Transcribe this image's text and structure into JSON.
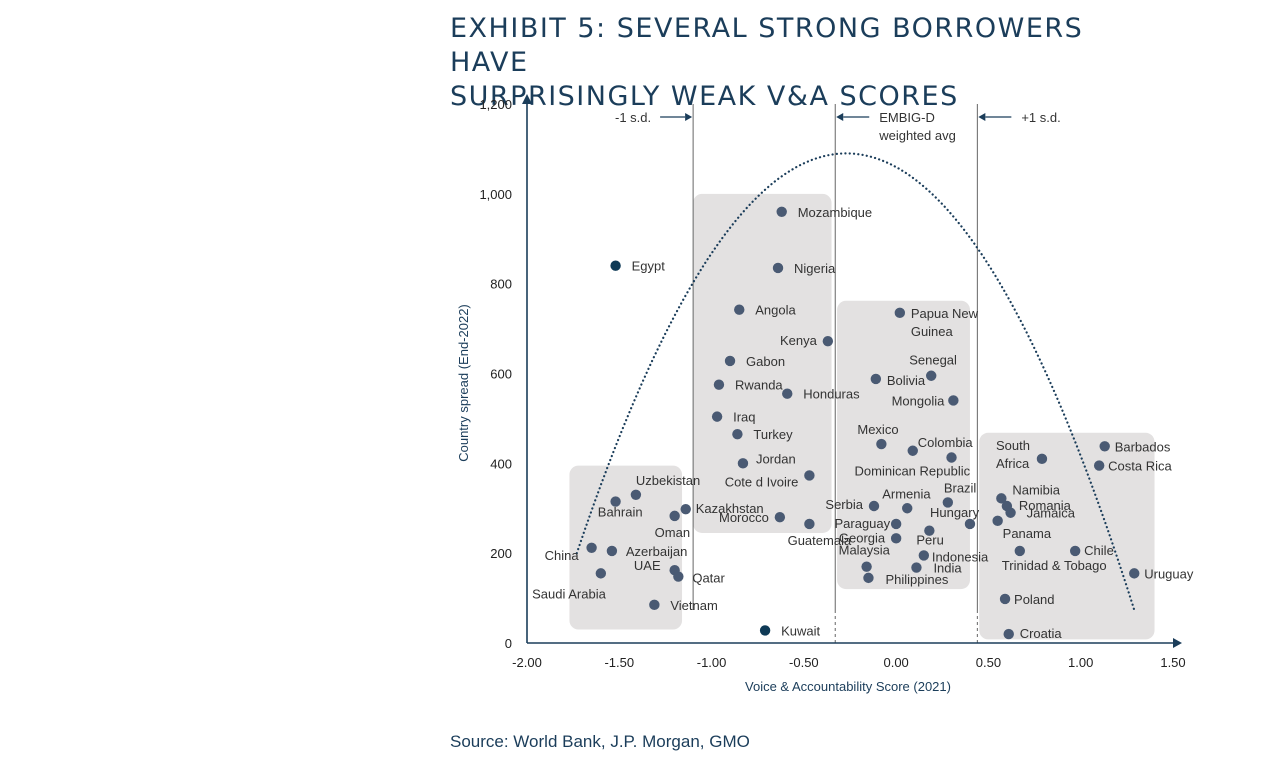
{
  "title": {
    "line1": "EXHIBIT 5: SEVERAL STRONG BORROWERS HAVE",
    "line2": "SURPRISINGLY WEAK V&A SCORES"
  },
  "source": "Source: World Bank, J.P. Morgan, GMO",
  "colors": {
    "title": "#1b3d5a",
    "axis": "#1b3d5a",
    "point": "#4a5a73",
    "highlight_point": "#0f3a56",
    "box": "#e3e1e1",
    "label": "#333333"
  },
  "chart_data": {
    "type": "scatter",
    "xlabel": "Voice & Accountability Score (2021)",
    "ylabel": "Country spread (End-2022)",
    "xlim": [
      -2.0,
      1.5
    ],
    "ylim": [
      0,
      1200
    ],
    "xticks": [
      "-2.00",
      "-1.50",
      "-1.00",
      "-0.50",
      "0.00",
      "0.50",
      "1.00",
      "1.50"
    ],
    "yticks": [
      "0",
      "200",
      "400",
      "600",
      "800",
      "1,000",
      "1,200"
    ],
    "reference_lines": [
      {
        "x": -1.1,
        "label": "-1 s.d.",
        "style": "solid"
      },
      {
        "x": -0.33,
        "label": "EMBIG-D weighted avg",
        "label_lines": [
          "EMBIG-D",
          "weighted avg"
        ],
        "style": "solid"
      },
      {
        "x": 0.44,
        "label": "+1 s.d.",
        "style": "solid"
      }
    ],
    "curve": {
      "style": "dotted",
      "note": "inverted parabola"
    },
    "boxes": [
      {
        "x0": -1.77,
        "x1": -1.16,
        "y0": 30,
        "y1": 395
      },
      {
        "x0": -1.1,
        "x1": -0.35,
        "y0": 245,
        "y1": 1000
      },
      {
        "x0": -0.32,
        "x1": 0.4,
        "y0": 120,
        "y1": 762
      },
      {
        "x0": 0.45,
        "x1": 1.4,
        "y0": 8,
        "y1": 468
      }
    ],
    "points": [
      {
        "name": "Mozambique",
        "x": -0.62,
        "y": 960
      },
      {
        "name": "Egypt",
        "x": -1.52,
        "y": 840,
        "highlight": true
      },
      {
        "name": "Nigeria",
        "x": -0.64,
        "y": 835
      },
      {
        "name": "Angola",
        "x": -0.85,
        "y": 742
      },
      {
        "name": "Kenya",
        "x": -0.37,
        "y": 672
      },
      {
        "name": "Gabon",
        "x": -0.9,
        "y": 628
      },
      {
        "name": "Rwanda",
        "x": -0.96,
        "y": 575
      },
      {
        "name": "Honduras",
        "x": -0.59,
        "y": 555
      },
      {
        "name": "Iraq",
        "x": -0.97,
        "y": 504
      },
      {
        "name": "Turkey",
        "x": -0.86,
        "y": 465
      },
      {
        "name": "Jordan",
        "x": -0.83,
        "y": 400
      },
      {
        "name": "Cote d Ivoire",
        "x": -0.47,
        "y": 373
      },
      {
        "name": "Uzbekistan",
        "x": -1.41,
        "y": 330
      },
      {
        "name": "Bahrain",
        "x": -1.52,
        "y": 315
      },
      {
        "name": "Kazakhstan",
        "x": -1.14,
        "y": 298
      },
      {
        "name": "Oman",
        "x": -1.2,
        "y": 283
      },
      {
        "name": "Morocco",
        "x": -0.63,
        "y": 280
      },
      {
        "name": "Guatemala",
        "x": -0.47,
        "y": 265
      },
      {
        "name": "China",
        "x": -1.65,
        "y": 212
      },
      {
        "name": "Azerbaijan",
        "x": -1.54,
        "y": 205
      },
      {
        "name": "UAE",
        "x": -1.2,
        "y": 162
      },
      {
        "name": "Qatar",
        "x": -1.18,
        "y": 148
      },
      {
        "name": "Saudi Arabia",
        "x": -1.6,
        "y": 155
      },
      {
        "name": "Vietnam",
        "x": -1.31,
        "y": 85
      },
      {
        "name": "Kuwait",
        "x": -0.71,
        "y": 28,
        "highlight": true
      },
      {
        "name": "Papua New Guinea",
        "x": 0.02,
        "y": 735
      },
      {
        "name": "Senegal",
        "x": 0.19,
        "y": 595
      },
      {
        "name": "Bolivia",
        "x": -0.11,
        "y": 588
      },
      {
        "name": "Mongolia",
        "x": 0.31,
        "y": 540
      },
      {
        "name": "Mexico",
        "x": -0.08,
        "y": 443
      },
      {
        "name": "Colombia",
        "x": 0.09,
        "y": 428
      },
      {
        "name": "Dominican Republic",
        "x": 0.3,
        "y": 413
      },
      {
        "name": "Brazil",
        "x": 0.28,
        "y": 313
      },
      {
        "name": "Armenia",
        "x": 0.06,
        "y": 300
      },
      {
        "name": "Serbia",
        "x": -0.12,
        "y": 305
      },
      {
        "name": "Hungary",
        "x": 0.4,
        "y": 265
      },
      {
        "name": "Paraguay",
        "x": 0.0,
        "y": 265
      },
      {
        "name": "Peru",
        "x": 0.18,
        "y": 250
      },
      {
        "name": "Georgia",
        "x": 0.0,
        "y": 233
      },
      {
        "name": "Indonesia",
        "x": 0.15,
        "y": 195
      },
      {
        "name": "Malaysia",
        "x": -0.16,
        "y": 170
      },
      {
        "name": "India",
        "x": 0.11,
        "y": 168
      },
      {
        "name": "Philippines",
        "x": -0.15,
        "y": 145
      },
      {
        "name": "Barbados",
        "x": 1.13,
        "y": 438
      },
      {
        "name": "South Africa",
        "x": 0.79,
        "y": 410
      },
      {
        "name": "Costa Rica",
        "x": 1.1,
        "y": 395
      },
      {
        "name": "Namibia",
        "x": 0.57,
        "y": 322
      },
      {
        "name": "Romania",
        "x": 0.6,
        "y": 305
      },
      {
        "name": "Jamaica",
        "x": 0.62,
        "y": 290
      },
      {
        "name": "Panama",
        "x": 0.55,
        "y": 272
      },
      {
        "name": "Chile",
        "x": 0.97,
        "y": 205
      },
      {
        "name": "Trinidad & Tobago",
        "x": 0.67,
        "y": 205
      },
      {
        "name": "Uruguay",
        "x": 1.29,
        "y": 155
      },
      {
        "name": "Poland",
        "x": 0.59,
        "y": 98
      },
      {
        "name": "Croatia",
        "x": 0.61,
        "y": 20
      }
    ]
  }
}
